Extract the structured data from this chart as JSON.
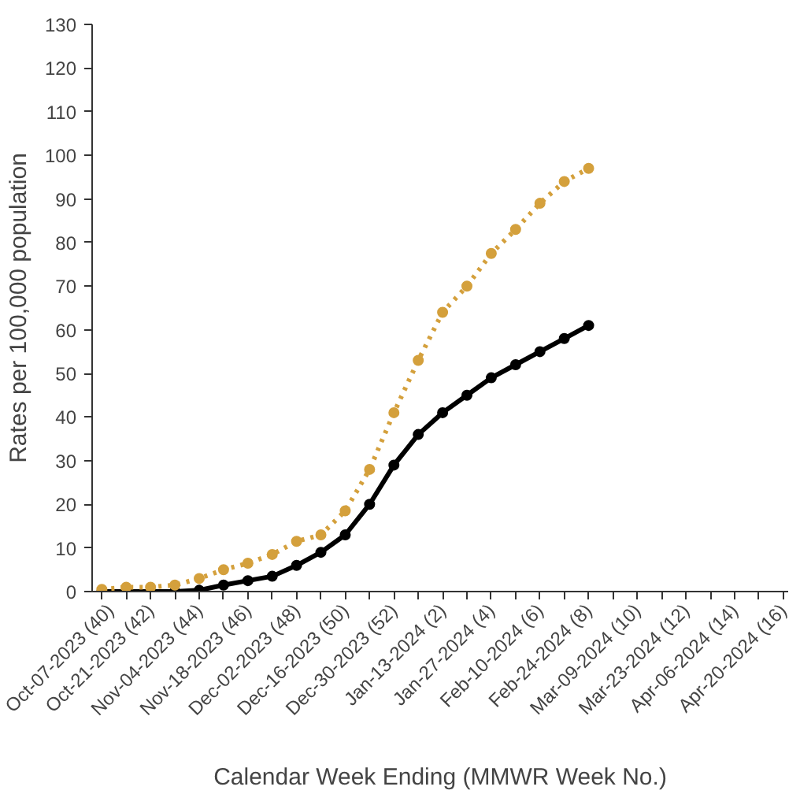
{
  "chart_data": {
    "type": "line",
    "xlabel": "Calendar Week Ending (MMWR Week No.)",
    "ylabel": "Rates per 100,000 population",
    "categories": [
      "Oct-07-2023 (40)",
      null,
      "Oct-21-2023 (42)",
      null,
      "Nov-04-2023 (44)",
      null,
      "Nov-18-2023 (46)",
      null,
      "Dec-02-2023 (48)",
      null,
      "Dec-16-2023 (50)",
      null,
      "Dec-30-2023 (52)",
      null,
      "Jan-13-2024 (2)",
      null,
      "Jan-27-2024 (4)",
      null,
      "Feb-10-2024 (6)",
      null,
      "Feb-24-2024 (8)",
      null,
      "Mar-09-2024 (10)",
      null,
      "Mar-23-2024 (12)",
      null,
      "Apr-06-2024 (14)",
      null,
      "Apr-20-2024 (16)"
    ],
    "series": [
      {
        "color": "#d4a03c",
        "line_style": "dotted",
        "values": [
          0.5,
          1,
          1,
          1.5,
          3,
          5,
          6.5,
          8.5,
          11.5,
          13,
          18.5,
          28,
          41,
          53,
          64,
          70,
          77.5,
          83,
          89,
          94,
          97,
          null,
          null,
          null,
          null,
          null,
          null,
          null,
          null
        ]
      },
      {
        "color": "#000000",
        "line_style": "solid",
        "values": [
          0,
          0,
          0,
          0,
          0.3,
          1.5,
          2.5,
          3.5,
          6,
          9,
          13,
          20,
          29,
          36,
          41,
          45,
          49,
          52,
          55,
          58,
          61,
          null,
          null,
          null,
          null,
          null,
          null,
          null,
          null
        ]
      }
    ],
    "ylim": [
      0,
      130
    ],
    "yticks": [
      0,
      10,
      20,
      30,
      40,
      50,
      60,
      70,
      80,
      90,
      100,
      110,
      120,
      130
    ],
    "grid": false,
    "marker": "circle"
  }
}
